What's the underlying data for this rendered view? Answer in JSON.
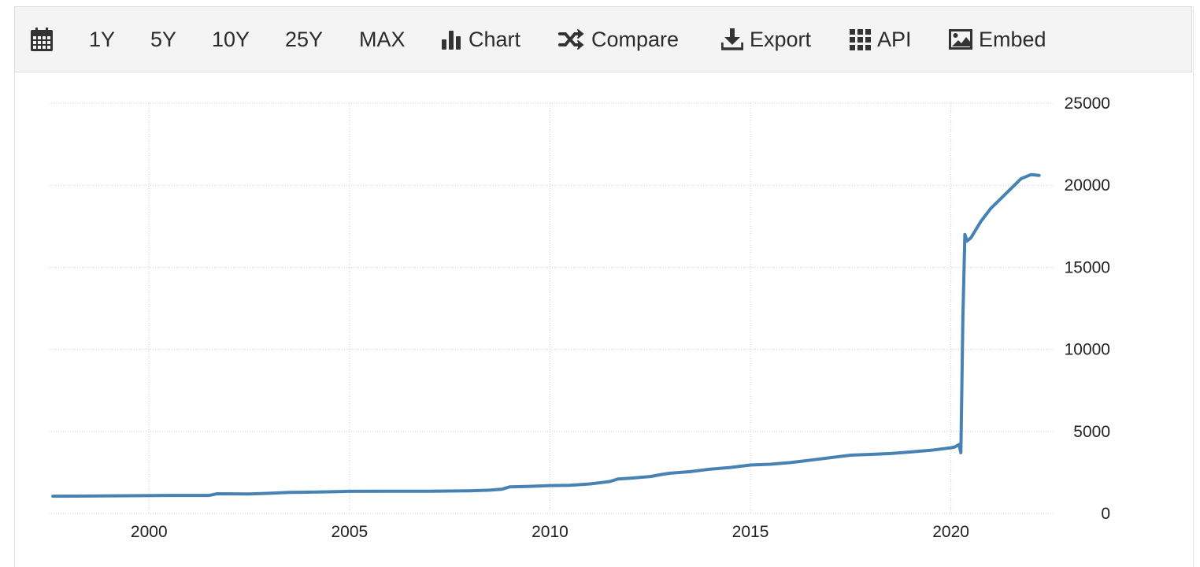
{
  "toolbar": {
    "items": [
      {
        "label": "",
        "icon": "calendar-icon"
      },
      {
        "label": "1Y"
      },
      {
        "label": "5Y"
      },
      {
        "label": "10Y"
      },
      {
        "label": "25Y"
      },
      {
        "label": "MAX"
      },
      {
        "label": "Chart",
        "icon": "bar-chart-icon"
      },
      {
        "label": "Compare",
        "icon": "shuffle-icon"
      },
      {
        "label": "Export",
        "icon": "download-icon"
      },
      {
        "label": "API",
        "icon": "grid-icon"
      },
      {
        "label": "Embed",
        "icon": "image-icon"
      }
    ]
  },
  "chart_data": {
    "type": "line",
    "title": "",
    "xlabel": "",
    "ylabel": "",
    "line_color": "#4682b4",
    "grid": true,
    "y_axis_side": "right",
    "xlim": [
      1997.5,
      2022.6
    ],
    "ylim": [
      0,
      25000
    ],
    "x_ticks": [
      2000,
      2005,
      2010,
      2015,
      2020
    ],
    "x_tick_labels": [
      "2000",
      "2005",
      "2010",
      "2015",
      "2020"
    ],
    "y_ticks": [
      0,
      5000,
      10000,
      15000,
      20000,
      25000
    ],
    "y_tick_labels": [
      "0",
      "5000",
      "10000",
      "15000",
      "20000",
      "25000"
    ],
    "series": [
      {
        "x": [
          1997.6,
          1998.5,
          1999.5,
          2000.5,
          2001.5,
          2001.7,
          2002.5,
          2003.0,
          2003.5,
          2004.5,
          2005.0,
          2006.0,
          2007.0,
          2008.0,
          2008.5,
          2008.8,
          2009.0,
          2009.5,
          2010.0,
          2010.5,
          2011.0,
          2011.5,
          2011.7,
          2012.0,
          2012.5,
          2012.8,
          2013.0,
          2013.5,
          2014.0,
          2014.5,
          2015.0,
          2015.5,
          2016.0,
          2016.5,
          2017.0,
          2017.5,
          2018.0,
          2018.5,
          2019.0,
          2019.5,
          2020.0,
          2020.1,
          2020.2,
          2020.25,
          2020.3,
          2020.35,
          2020.4,
          2020.5,
          2020.75,
          2021.0,
          2021.25,
          2021.5,
          2021.75,
          2022.0,
          2022.2
        ],
        "y": [
          1050,
          1060,
          1080,
          1100,
          1100,
          1200,
          1190,
          1230,
          1280,
          1320,
          1350,
          1360,
          1360,
          1380,
          1420,
          1480,
          1620,
          1650,
          1700,
          1720,
          1800,
          1950,
          2100,
          2150,
          2250,
          2380,
          2450,
          2550,
          2700,
          2800,
          2950,
          3000,
          3100,
          3250,
          3400,
          3550,
          3600,
          3650,
          3750,
          3850,
          4000,
          4050,
          4200,
          3700,
          12000,
          17000,
          16600,
          16800,
          17800,
          18600,
          19200,
          19800,
          20400,
          20650,
          20600
        ]
      }
    ]
  }
}
